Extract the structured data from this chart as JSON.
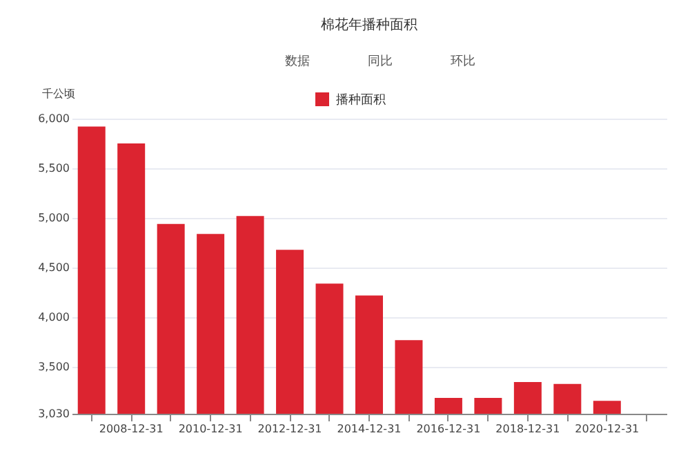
{
  "chart_data": {
    "type": "bar",
    "title": "棉花年播种面积",
    "ylabel": "千公顷",
    "legend": "top",
    "annotations": [
      "数据",
      "同比",
      "环比"
    ],
    "categories": [
      null,
      "2008-12-31",
      null,
      "2010-12-31",
      null,
      "2012-12-31",
      null,
      "2014-12-31",
      null,
      "2016-12-31",
      null,
      "2018-12-31",
      null,
      "2020-12-31",
      null
    ],
    "series": [
      {
        "name": "播种面积",
        "color": "#dc2430",
        "values": [
          5920,
          5750,
          4940,
          4840,
          5020,
          4680,
          4340,
          4220,
          3770,
          3190,
          3190,
          3350,
          3330,
          3160,
          null
        ]
      }
    ],
    "ylim": [
      3030,
      6000
    ],
    "yticks": [
      {
        "value": 3030,
        "label": "3,030"
      },
      {
        "value": 3500,
        "label": "3,500"
      },
      {
        "value": 4000,
        "label": "4,000"
      },
      {
        "value": 4500,
        "label": "4,500"
      },
      {
        "value": 5000,
        "label": "5,000"
      },
      {
        "value": 5500,
        "label": "5,500"
      },
      {
        "value": 6000,
        "label": "6,000"
      }
    ],
    "grid": "y"
  }
}
